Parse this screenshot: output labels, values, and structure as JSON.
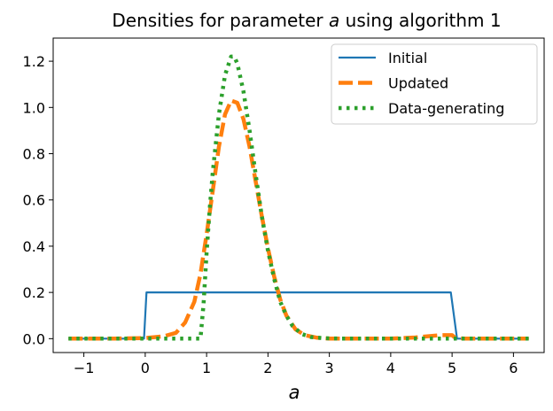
{
  "chart_data": {
    "type": "line",
    "title_parts": [
      "Densities for parameter ",
      "a",
      " using algorithm 1"
    ],
    "xlabel": "a",
    "ylabel": "",
    "xlim": [
      -1.5,
      6.5
    ],
    "ylim": [
      -0.06,
      1.3
    ],
    "xticks": [
      -1,
      0,
      1,
      2,
      3,
      4,
      5,
      6
    ],
    "xtick_labels": [
      "−1",
      "0",
      "1",
      "2",
      "3",
      "4",
      "5",
      "6"
    ],
    "yticks": [
      0.0,
      0.2,
      0.4,
      0.6,
      0.8,
      1.0,
      1.2
    ],
    "ytick_labels": [
      "0.0",
      "0.2",
      "0.4",
      "0.6",
      "0.8",
      "1.0",
      "1.2"
    ],
    "grid": false,
    "legend_position": "top-right",
    "series": [
      {
        "name": "Initial",
        "color": "#1f77b4",
        "style": "solid",
        "x": [
          -1.25,
          -0.02,
          0.02,
          4.98,
          5.08,
          6.25
        ],
        "y": [
          0.0,
          0.0,
          0.2,
          0.2,
          0.0,
          0.0
        ]
      },
      {
        "name": "Updated",
        "color": "#ff7f0e",
        "style": "dashed",
        "x": [
          -1.25,
          -0.5,
          0.0,
          0.3,
          0.5,
          0.65,
          0.8,
          0.9,
          1.0,
          1.1,
          1.2,
          1.3,
          1.4,
          1.5,
          1.6,
          1.7,
          1.8,
          1.9,
          2.0,
          2.1,
          2.2,
          2.3,
          2.45,
          2.6,
          2.8,
          3.0,
          3.5,
          4.0,
          4.4,
          4.8,
          5.0,
          5.05,
          5.2,
          5.6,
          6.0,
          6.25
        ],
        "y": [
          0.0,
          0.0,
          0.003,
          0.01,
          0.025,
          0.07,
          0.16,
          0.28,
          0.45,
          0.64,
          0.83,
          0.97,
          1.03,
          1.02,
          0.95,
          0.83,
          0.68,
          0.53,
          0.39,
          0.27,
          0.17,
          0.1,
          0.04,
          0.015,
          0.004,
          0.0,
          0.0,
          0.0,
          0.005,
          0.015,
          0.015,
          0.004,
          0.0,
          0.0,
          0.0,
          0.0
        ]
      },
      {
        "name": "Data-generating",
        "color": "#2ca02c",
        "style": "dotted",
        "x": [
          -1.25,
          0.0,
          0.5,
          0.9,
          0.95,
          1.0,
          1.05,
          1.1,
          1.2,
          1.3,
          1.4,
          1.45,
          1.5,
          1.6,
          1.7,
          1.8,
          1.9,
          2.0,
          2.1,
          2.2,
          2.3,
          2.4,
          2.55,
          2.7,
          2.9,
          3.2,
          4.0,
          5.0,
          6.25
        ],
        "y": [
          0.0,
          0.0,
          0.0,
          0.0,
          0.15,
          0.37,
          0.56,
          0.72,
          0.97,
          1.14,
          1.22,
          1.22,
          1.19,
          1.07,
          0.9,
          0.71,
          0.53,
          0.38,
          0.26,
          0.16,
          0.1,
          0.055,
          0.02,
          0.007,
          0.002,
          0.0,
          0.0,
          0.0,
          0.0
        ]
      }
    ]
  }
}
